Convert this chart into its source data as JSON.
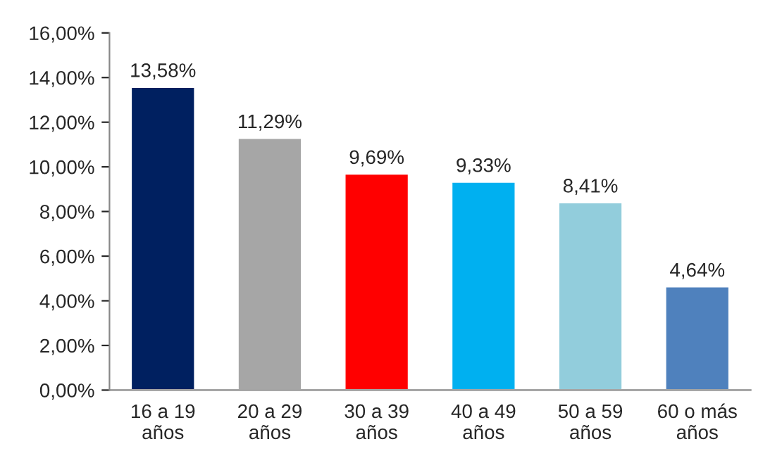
{
  "chart_data": {
    "type": "bar",
    "categories": [
      "16 a 19\naños",
      "20 a 29\naños",
      "30 a 39\naños",
      "40 a 49\naños",
      "50 a 59\naños",
      "60 o más\naños"
    ],
    "values": [
      13.58,
      11.29,
      9.69,
      9.33,
      8.41,
      4.64
    ],
    "colors": [
      "#002060",
      "#a6a6a6",
      "#ff0000",
      "#00b0f0",
      "#92cddc",
      "#4f81bd"
    ],
    "value_labels": [
      "13,58%",
      "11,29%",
      "9,69%",
      "9,33%",
      "8,41%",
      "4,64%"
    ],
    "ylim": [
      0,
      16
    ],
    "yticks": [
      {
        "value": 0,
        "label": "0,00%"
      },
      {
        "value": 2,
        "label": "2,00%"
      },
      {
        "value": 4,
        "label": "4,00%"
      },
      {
        "value": 6,
        "label": "6,00%"
      },
      {
        "value": 8,
        "label": "8,00%"
      },
      {
        "value": 10,
        "label": "10,00%"
      },
      {
        "value": 12,
        "label": "12,00%"
      },
      {
        "value": 14,
        "label": "14,00%"
      },
      {
        "value": 16,
        "label": "16,00%"
      }
    ],
    "grid": false
  }
}
